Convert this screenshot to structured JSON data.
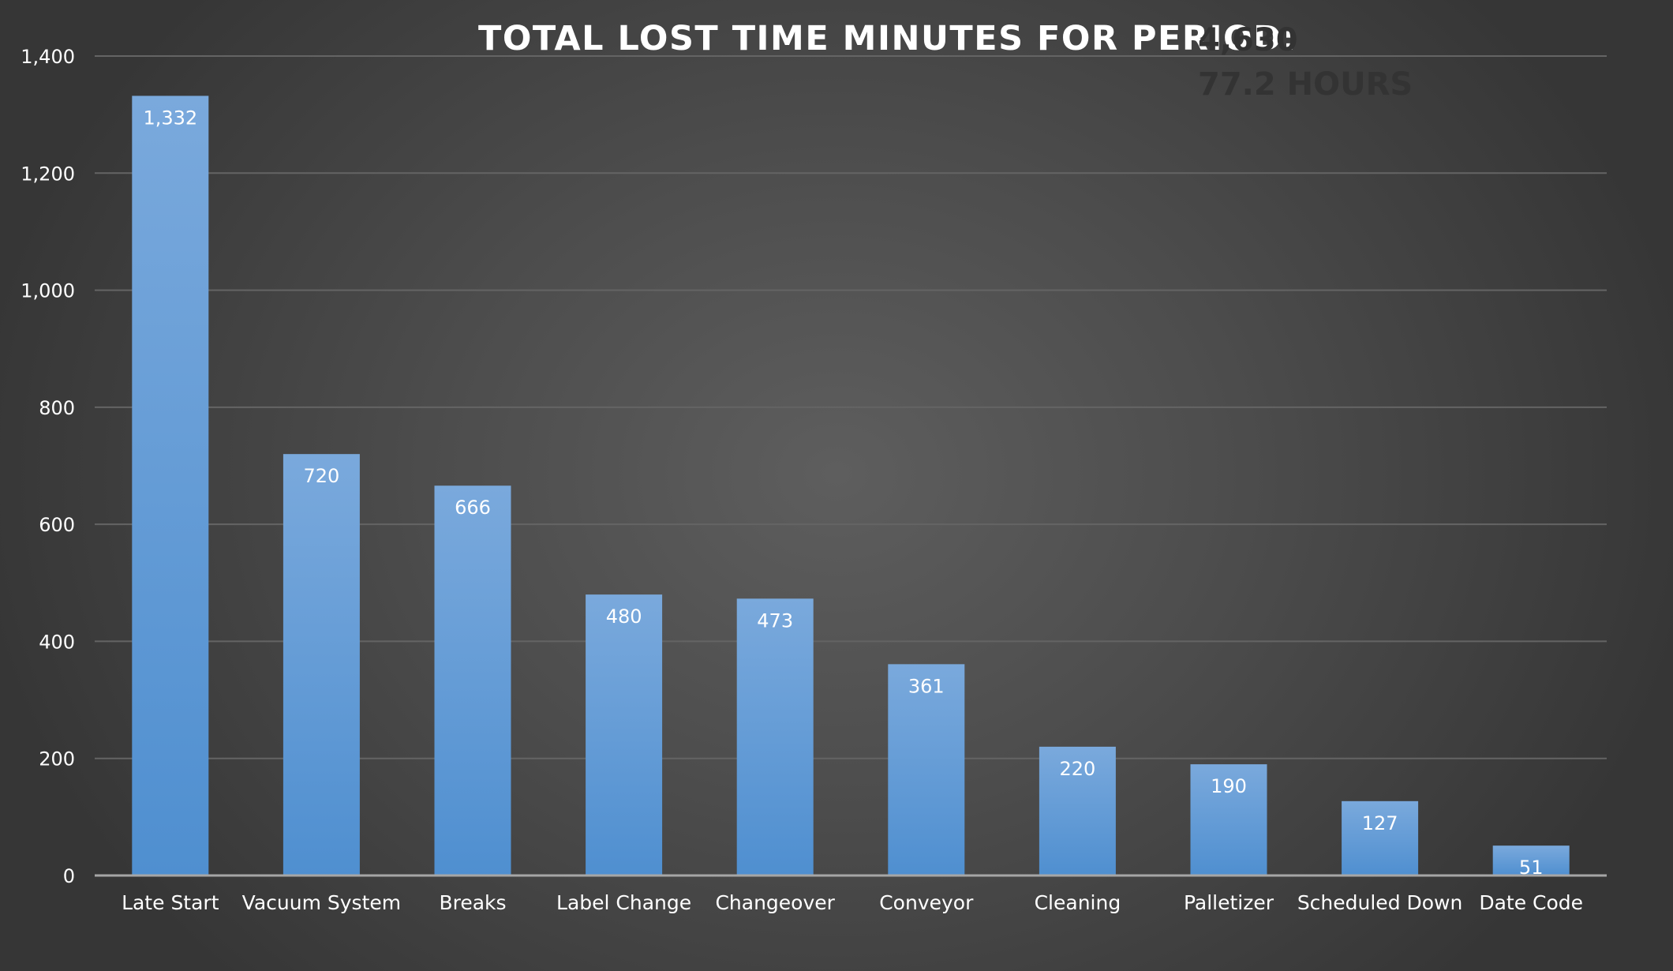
{
  "chart_data": {
    "type": "bar",
    "title": "TOTAL LOST TIME MINUTES FOR PERIOD:",
    "total_minutes_label": "4,630",
    "total_hours_label": "77.2 HOURS",
    "categories": [
      "Late Start",
      "Vacuum System",
      "Breaks",
      "Label Change",
      "Changeover",
      "Conveyor",
      "Cleaning",
      "Palletizer",
      "Scheduled Down",
      "Date Code"
    ],
    "values": [
      1332,
      720,
      666,
      480,
      473,
      361,
      220,
      190,
      127,
      51
    ],
    "data_labels": [
      "1,332",
      "720",
      "666",
      "480",
      "473",
      "361",
      "220",
      "190",
      "127",
      "51"
    ],
    "ylim": [
      0,
      1400
    ],
    "yticks": [
      0,
      200,
      400,
      600,
      800,
      1000,
      1200,
      1400
    ],
    "ytick_labels": [
      "0",
      "200",
      "400",
      "600",
      "800",
      "1,000",
      "1,200",
      "1,400"
    ],
    "xlabel": "",
    "ylabel": "",
    "grid": true,
    "legend": "none",
    "colors": {
      "bar_top": "#7aa9dc",
      "bar_bottom": "#4f8fd0",
      "grid": "#646464",
      "axis": "#a6a6a6",
      "tick_label": "#ffffff",
      "title": "#ffffff",
      "total": "#333333"
    }
  }
}
